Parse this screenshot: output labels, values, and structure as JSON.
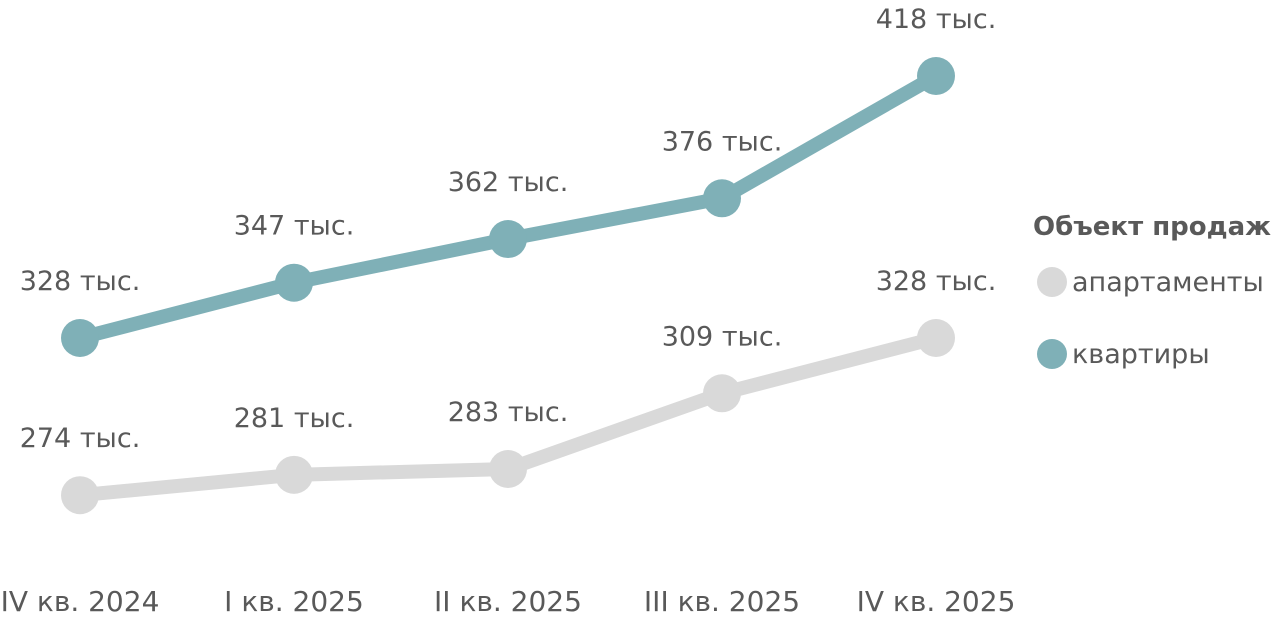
{
  "chart_data": {
    "type": "line",
    "categories": [
      "IV кв. 2024",
      "I кв. 2025",
      "II кв. 2025",
      "III кв. 2025",
      "IV кв. 2025"
    ],
    "series": [
      {
        "name": "апартаменты",
        "values": [
          274,
          281,
          283,
          309,
          328
        ],
        "labels": [
          "274 тыс.",
          "281 тыс.",
          "283 тыс.",
          "309 тыс.",
          "328 тыс."
        ],
        "color": "#d9d9d9"
      },
      {
        "name": "квартиры",
        "values": [
          328,
          347,
          362,
          376,
          418
        ],
        "labels": [
          "328 тыс.",
          "347 тыс.",
          "362 тыс.",
          "376 тыс.",
          "418 тыс."
        ],
        "color": "#7fb0b7"
      }
    ],
    "legend": {
      "title": "Объект продаж",
      "placement": "right"
    },
    "grid": false
  }
}
